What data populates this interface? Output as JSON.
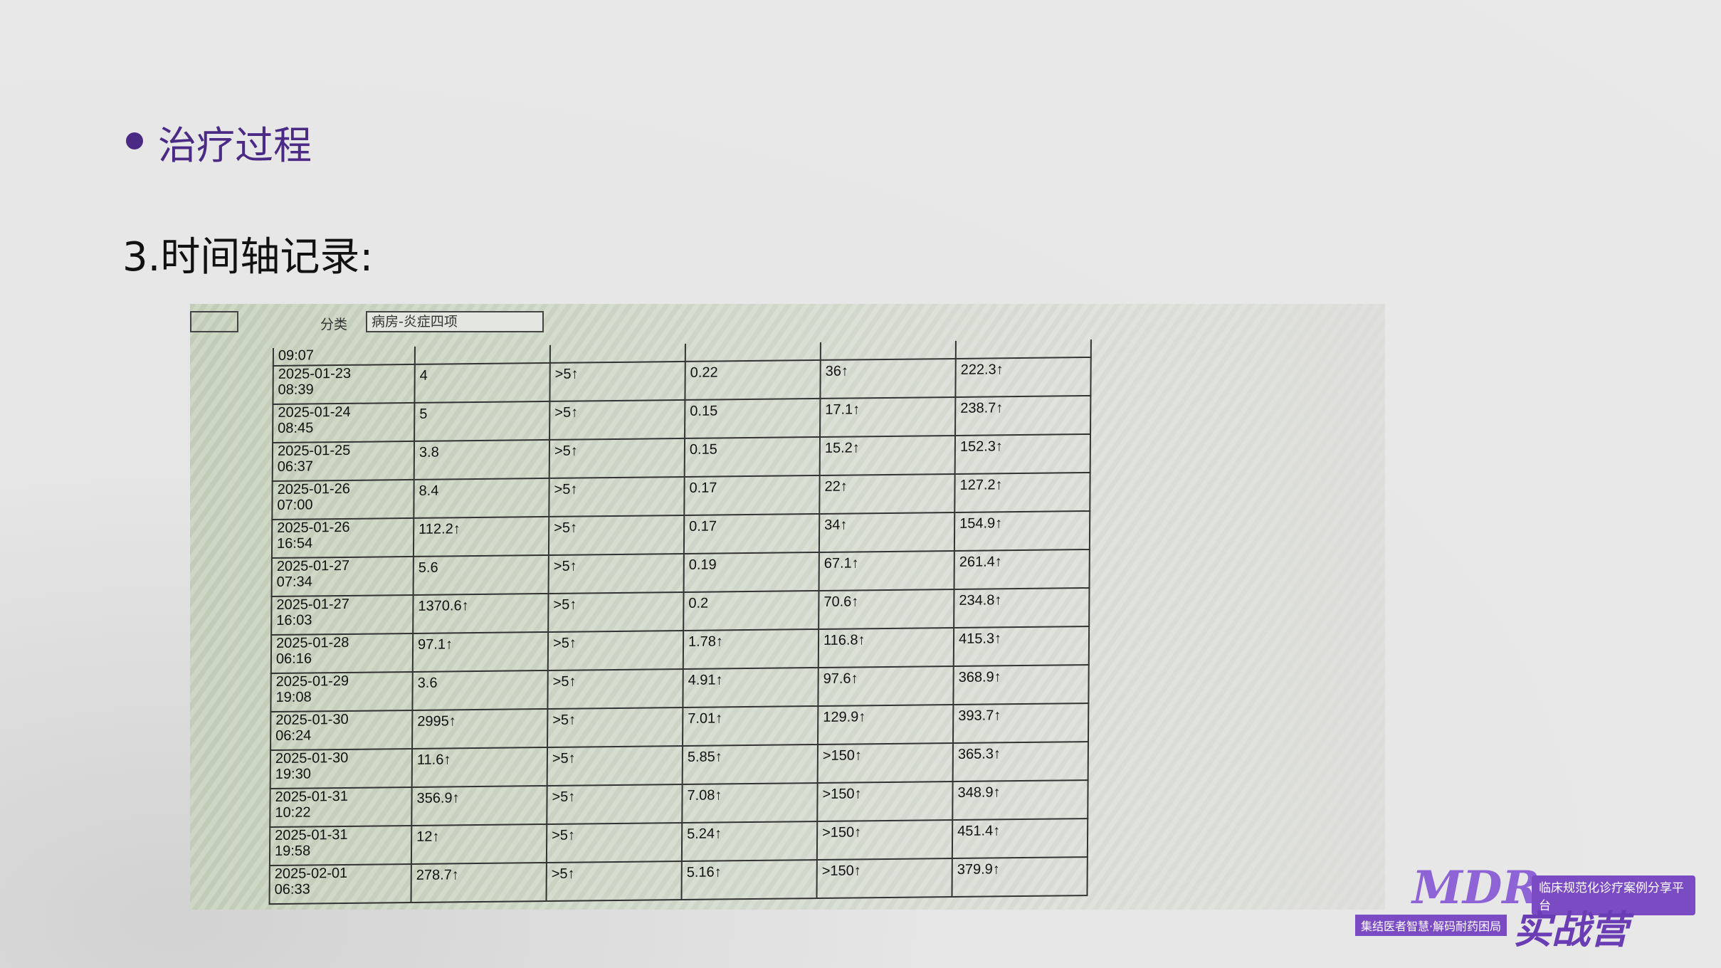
{
  "header": {
    "bullet": "治疗过程",
    "subtitle": "3.时间轴记录:"
  },
  "photo": {
    "filter_label": "分类",
    "filter_value": "病房-炎症四项",
    "partial_row_time": "09:07",
    "table": {
      "rows": [
        [
          "2025-01-23",
          "08:39",
          "4",
          ">5↑",
          "0.22",
          "36↑",
          "222.3↑"
        ],
        [
          "2025-01-24",
          "08:45",
          "5",
          ">5↑",
          "0.15",
          "17.1↑",
          "238.7↑"
        ],
        [
          "2025-01-25",
          "06:37",
          "3.8",
          ">5↑",
          "0.15",
          "15.2↑",
          "152.3↑"
        ],
        [
          "2025-01-26",
          "07:00",
          "8.4",
          ">5↑",
          "0.17",
          "22↑",
          "127.2↑"
        ],
        [
          "2025-01-26",
          "16:54",
          "112.2↑",
          ">5↑",
          "0.17",
          "34↑",
          "154.9↑"
        ],
        [
          "2025-01-27",
          "07:34",
          "5.6",
          ">5↑",
          "0.19",
          "67.1↑",
          "261.4↑"
        ],
        [
          "2025-01-27",
          "16:03",
          "1370.6↑",
          ">5↑",
          "0.2",
          "70.6↑",
          "234.8↑"
        ],
        [
          "2025-01-28",
          "06:16",
          "97.1↑",
          ">5↑",
          "1.78↑",
          "116.8↑",
          "415.3↑"
        ],
        [
          "2025-01-29",
          "19:08",
          "3.6",
          ">5↑",
          "4.91↑",
          "97.6↑",
          "368.9↑"
        ],
        [
          "2025-01-30",
          "06:24",
          "2995↑",
          ">5↑",
          "7.01↑",
          "129.9↑",
          "393.7↑"
        ],
        [
          "2025-01-30",
          "19:30",
          "11.6↑",
          ">5↑",
          "5.85↑",
          ">150↑",
          "365.3↑"
        ],
        [
          "2025-01-31",
          "10:22",
          "356.9↑",
          ">5↑",
          "7.08↑",
          ">150↑",
          "348.9↑"
        ],
        [
          "2025-01-31",
          "19:58",
          "12↑",
          ">5↑",
          "5.24↑",
          ">150↑",
          "451.4↑"
        ],
        [
          "2025-02-01",
          "06:33",
          "278.7↑",
          ">5↑",
          "5.16↑",
          ">150↑",
          "379.9↑"
        ]
      ]
    }
  },
  "logo": {
    "brand": "MDR",
    "tagline": "临床规范化诊疗案例分享平台",
    "slogan": "集结医者智慧·解码耐药困局",
    "name": "实战营"
  }
}
